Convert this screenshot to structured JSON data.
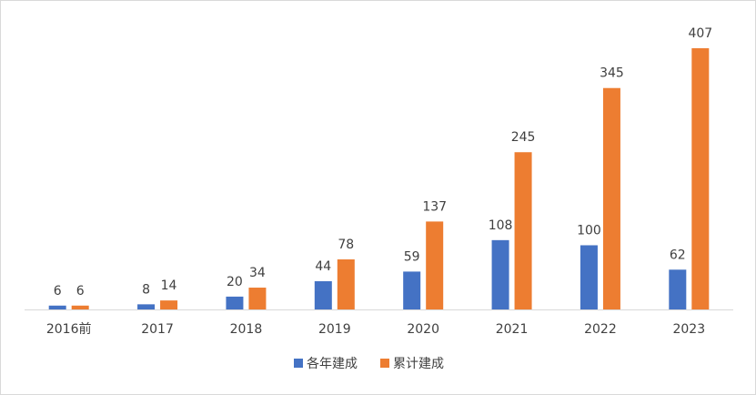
{
  "chart_data": {
    "type": "bar",
    "categories": [
      "2016前",
      "2017",
      "2018",
      "2019",
      "2020",
      "2021",
      "2022",
      "2023"
    ],
    "series": [
      {
        "name": "各年建成",
        "values": [
          6,
          8,
          20,
          44,
          59,
          108,
          100,
          62
        ],
        "color": "#4472c4"
      },
      {
        "name": "累计建成",
        "values": [
          6,
          14,
          34,
          78,
          137,
          245,
          345,
          407
        ],
        "color": "#ed7d31"
      }
    ],
    "ylim": [
      0,
      407
    ],
    "grid": false,
    "legend": "bottom-center",
    "data_labels": true
  }
}
